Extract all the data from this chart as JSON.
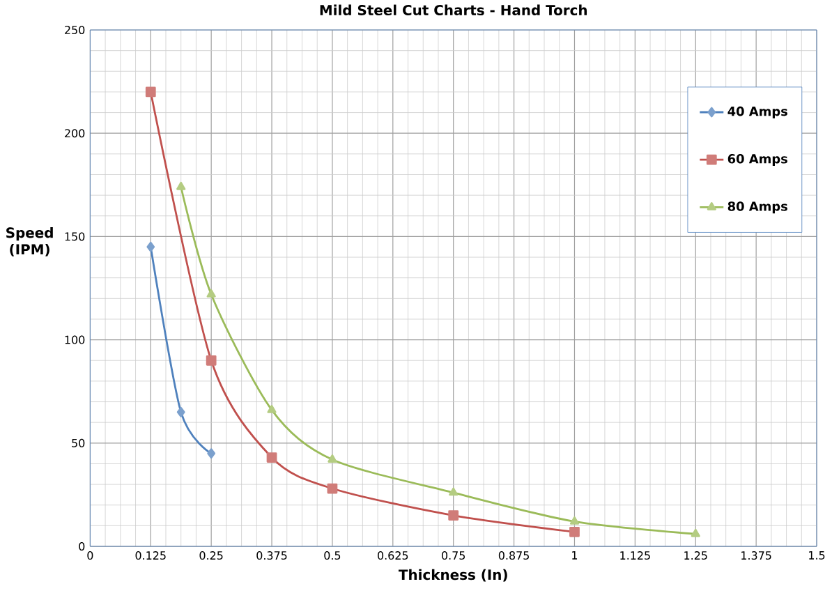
{
  "chart_data": {
    "type": "line",
    "title": "Mild Steel Cut Charts - Hand Torch",
    "xlabel": "Thickness (In)",
    "ylabel": "Speed (IPM)",
    "xlim": [
      0,
      1.5
    ],
    "ylim": [
      0,
      250
    ],
    "xticks": [
      0,
      0.125,
      0.25,
      0.375,
      0.5,
      0.625,
      0.75,
      0.875,
      1,
      1.125,
      1.25,
      1.375,
      1.5
    ],
    "yticks": [
      0,
      50,
      100,
      150,
      200,
      250
    ],
    "grid": true,
    "legend": "top right",
    "series": [
      {
        "name": "40 Amps",
        "color": "#4f81bd",
        "marker": "diamond",
        "x": [
          0.125,
          0.1875,
          0.25
        ],
        "values": [
          145,
          65,
          45
        ]
      },
      {
        "name": "60 Amps",
        "color": "#c0504d",
        "marker": "square",
        "x": [
          0.125,
          0.25,
          0.375,
          0.5,
          0.75,
          1
        ],
        "values": [
          220,
          90,
          43,
          28,
          15,
          7
        ]
      },
      {
        "name": "80 Amps",
        "color": "#9bbb59",
        "marker": "triangle",
        "x": [
          0.1875,
          0.25,
          0.375,
          0.5,
          0.75,
          1,
          1.25
        ],
        "values": [
          174,
          122,
          66,
          42,
          26,
          12,
          6
        ]
      }
    ]
  }
}
